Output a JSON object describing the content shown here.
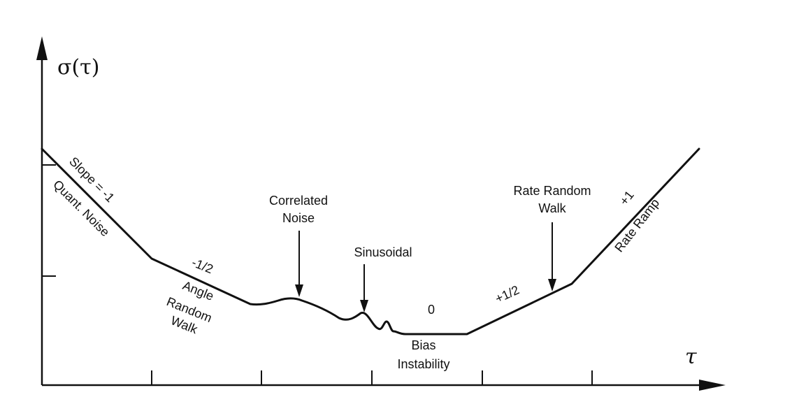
{
  "axes": {
    "y_label": "σ(τ)",
    "x_label": "τ"
  },
  "regions": {
    "slope_minus_1": "Slope = -1",
    "quant_noise": "Quant. Noise",
    "slope_minus_half": "-1/2",
    "angle_random_walk": [
      "Angle",
      "Random",
      "Walk"
    ],
    "correlated_noise": [
      "Correlated",
      "Noise"
    ],
    "sinusoidal": "Sinusoidal",
    "slope_zero": "0",
    "bias_instability": [
      "Bias",
      "Instability"
    ],
    "slope_plus_half": "+1/2",
    "rate_random_walk": [
      "Rate Random",
      "Walk"
    ],
    "slope_plus_1": "+1",
    "rate_ramp": "Rate Ramp"
  }
}
